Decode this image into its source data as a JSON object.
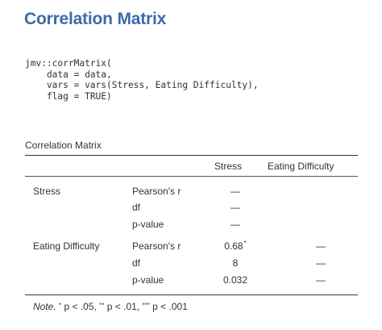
{
  "title": "Correlation Matrix",
  "code": {
    "lines": [
      "jmv::corrMatrix(",
      "    data = data,",
      "    vars = vars(Stress, Eating Difficulty),",
      "    flag = TRUE)"
    ]
  },
  "table": {
    "caption": "Correlation Matrix",
    "columns": [
      "Stress",
      "Eating Difficulty"
    ],
    "rows": [
      {
        "variable": "Stress",
        "stat": "Pearson's r",
        "stress": "—",
        "eating": ""
      },
      {
        "variable": "",
        "stat": "df",
        "stress": "—",
        "eating": ""
      },
      {
        "variable": "",
        "stat": "p-value",
        "stress": "—",
        "eating": ""
      },
      {
        "variable": "Eating Difficulty",
        "stat": "Pearson's r",
        "stress": "0.68",
        "stress_sig": "*",
        "eating": "—"
      },
      {
        "variable": "",
        "stat": "df",
        "stress": "8",
        "eating": "—"
      },
      {
        "variable": "",
        "stat": "p-value",
        "stress": "0.032",
        "eating": "—"
      }
    ],
    "note": {
      "label": "Note.",
      "one_star": "*",
      "one_star_text": " p < .05, ",
      "two_star": "**",
      "two_star_text": " p < .01, ",
      "three_star": "***",
      "three_star_text": " p < .001"
    }
  }
}
